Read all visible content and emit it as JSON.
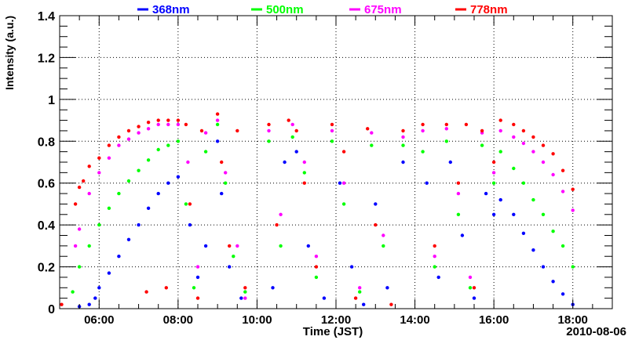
{
  "chart_data": {
    "type": "scatter",
    "title": "",
    "xlabel": "Time (JST)",
    "ylabel": "Intensity (a.u.)",
    "date_label": "2010-08-06",
    "xlim_hours": [
      5,
      19
    ],
    "ylim": [
      0,
      1.4
    ],
    "x_ticks": [
      {
        "t": 6,
        "label": "06:00"
      },
      {
        "t": 8,
        "label": "08:00"
      },
      {
        "t": 10,
        "label": "10:00"
      },
      {
        "t": 12,
        "label": "12:00"
      },
      {
        "t": 14,
        "label": "14:00"
      },
      {
        "t": 16,
        "label": "16:00"
      },
      {
        "t": 18,
        "label": "18:00"
      }
    ],
    "y_ticks": [
      {
        "v": 0,
        "label": "0"
      },
      {
        "v": 0.2,
        "label": "0.2"
      },
      {
        "v": 0.4,
        "label": "0.4"
      },
      {
        "v": 0.6,
        "label": "0.6"
      },
      {
        "v": 0.8,
        "label": "0.8"
      },
      {
        "v": 1,
        "label": "1"
      },
      {
        "v": 1.2,
        "label": "1.2"
      },
      {
        "v": 1.4,
        "label": "1.4"
      }
    ],
    "grid": true,
    "legend_position": "top",
    "series": [
      {
        "name": "368nm",
        "color": "#0000ff",
        "points": [
          [
            5.5,
            0.01
          ],
          [
            5.75,
            0.02
          ],
          [
            5.9,
            0.05
          ],
          [
            6,
            0.1
          ],
          [
            6.25,
            0.17
          ],
          [
            6.5,
            0.25
          ],
          [
            6.75,
            0.33
          ],
          [
            7,
            0.4
          ],
          [
            7.25,
            0.48
          ],
          [
            7.5,
            0.55
          ],
          [
            7.75,
            0.6
          ],
          [
            8,
            0.63
          ],
          [
            8.3,
            0.4
          ],
          [
            8.5,
            0.15
          ],
          [
            8.7,
            0.3
          ],
          [
            9.0,
            0.8
          ],
          [
            9.1,
            0.55
          ],
          [
            9.3,
            0.2
          ],
          [
            9.6,
            0.05
          ],
          [
            10.4,
            0.1
          ],
          [
            10.7,
            0.7
          ],
          [
            11.0,
            0.75
          ],
          [
            11.3,
            0.3
          ],
          [
            11.7,
            0.05
          ],
          [
            12.1,
            0.6
          ],
          [
            12.4,
            0.2
          ],
          [
            12.7,
            0.02
          ],
          [
            13.0,
            0.5
          ],
          [
            13.3,
            0.1
          ],
          [
            13.7,
            0.7
          ],
          [
            14.3,
            0.6
          ],
          [
            14.6,
            0.15
          ],
          [
            14.9,
            0.7
          ],
          [
            15.2,
            0.35
          ],
          [
            15.5,
            0.05
          ],
          [
            15.8,
            0.55
          ],
          [
            16.0,
            0.45
          ],
          [
            16.17,
            0.52
          ],
          [
            16.5,
            0.45
          ],
          [
            16.75,
            0.36
          ],
          [
            17,
            0.28
          ],
          [
            17.25,
            0.2
          ],
          [
            17.5,
            0.13
          ],
          [
            17.75,
            0.07
          ],
          [
            18,
            0.02
          ]
        ]
      },
      {
        "name": "500nm",
        "color": "#00ff00",
        "points": [
          [
            5.33,
            0.08
          ],
          [
            5.5,
            0.2
          ],
          [
            5.75,
            0.3
          ],
          [
            6,
            0.4
          ],
          [
            6.25,
            0.48
          ],
          [
            6.5,
            0.55
          ],
          [
            6.75,
            0.61
          ],
          [
            7,
            0.66
          ],
          [
            7.25,
            0.71
          ],
          [
            7.5,
            0.76
          ],
          [
            7.75,
            0.78
          ],
          [
            8,
            0.8
          ],
          [
            8.2,
            0.5
          ],
          [
            8.4,
            0.1
          ],
          [
            8.7,
            0.75
          ],
          [
            9.0,
            0.88
          ],
          [
            9.2,
            0.6
          ],
          [
            9.4,
            0.25
          ],
          [
            9.7,
            0.08
          ],
          [
            10.3,
            0.8
          ],
          [
            10.6,
            0.3
          ],
          [
            10.9,
            0.82
          ],
          [
            11.2,
            0.65
          ],
          [
            11.5,
            0.15
          ],
          [
            11.9,
            0.8
          ],
          [
            12.2,
            0.5
          ],
          [
            12.6,
            0.08
          ],
          [
            12.9,
            0.78
          ],
          [
            13.2,
            0.3
          ],
          [
            13.7,
            0.78
          ],
          [
            14.2,
            0.75
          ],
          [
            14.5,
            0.2
          ],
          [
            14.8,
            0.8
          ],
          [
            15.1,
            0.45
          ],
          [
            15.4,
            0.1
          ],
          [
            15.7,
            0.78
          ],
          [
            16.0,
            0.6
          ],
          [
            16.17,
            0.75
          ],
          [
            16.5,
            0.67
          ],
          [
            16.75,
            0.6
          ],
          [
            17,
            0.52
          ],
          [
            17.25,
            0.45
          ],
          [
            17.5,
            0.37
          ],
          [
            17.75,
            0.3
          ],
          [
            18,
            0.2
          ]
        ]
      },
      {
        "name": "675nm",
        "color": "#ff00ff",
        "points": [
          [
            5.4,
            0.3
          ],
          [
            5.5,
            0.38
          ],
          [
            5.75,
            0.55
          ],
          [
            6,
            0.65
          ],
          [
            6.25,
            0.72
          ],
          [
            6.5,
            0.78
          ],
          [
            6.75,
            0.81
          ],
          [
            7,
            0.84
          ],
          [
            7.25,
            0.86
          ],
          [
            7.5,
            0.88
          ],
          [
            7.75,
            0.88
          ],
          [
            8,
            0.88
          ],
          [
            8.25,
            0.7
          ],
          [
            8.5,
            0.2
          ],
          [
            8.7,
            0.84
          ],
          [
            9.0,
            0.9
          ],
          [
            9.2,
            0.65
          ],
          [
            9.5,
            0.3
          ],
          [
            9.7,
            0.05
          ],
          [
            10.3,
            0.85
          ],
          [
            10.6,
            0.45
          ],
          [
            10.9,
            0.88
          ],
          [
            11.2,
            0.7
          ],
          [
            11.5,
            0.25
          ],
          [
            11.9,
            0.85
          ],
          [
            12.2,
            0.6
          ],
          [
            12.6,
            0.1
          ],
          [
            12.9,
            0.84
          ],
          [
            13.2,
            0.35
          ],
          [
            13.7,
            0.82
          ],
          [
            14.2,
            0.85
          ],
          [
            14.5,
            0.25
          ],
          [
            14.8,
            0.86
          ],
          [
            15.1,
            0.55
          ],
          [
            15.4,
            0.15
          ],
          [
            15.7,
            0.84
          ],
          [
            16.0,
            0.65
          ],
          [
            16.17,
            0.85
          ],
          [
            16.5,
            0.82
          ],
          [
            16.75,
            0.79
          ],
          [
            17,
            0.75
          ],
          [
            17.25,
            0.7
          ],
          [
            17.5,
            0.64
          ],
          [
            17.75,
            0.56
          ],
          [
            18,
            0.47
          ]
        ]
      },
      {
        "name": "778nm",
        "color": "#ff0000",
        "points": [
          [
            5.05,
            0.02
          ],
          [
            5.4,
            0.5
          ],
          [
            5.5,
            0.58
          ],
          [
            5.6,
            0.61
          ],
          [
            5.75,
            0.68
          ],
          [
            6,
            0.72
          ],
          [
            6.25,
            0.78
          ],
          [
            6.5,
            0.82
          ],
          [
            6.75,
            0.85
          ],
          [
            7,
            0.87
          ],
          [
            7.25,
            0.89
          ],
          [
            7.5,
            0.9
          ],
          [
            7.75,
            0.9
          ],
          [
            8,
            0.9
          ],
          [
            7.2,
            0.08
          ],
          [
            7.7,
            0.1
          ],
          [
            8.2,
            0.88
          ],
          [
            8.3,
            0.5
          ],
          [
            8.5,
            0.05
          ],
          [
            8.6,
            0.85
          ],
          [
            9.0,
            0.93
          ],
          [
            9.1,
            0.7
          ],
          [
            9.3,
            0.3
          ],
          [
            9.5,
            0.85
          ],
          [
            9.7,
            0.1
          ],
          [
            10.3,
            0.88
          ],
          [
            10.5,
            0.4
          ],
          [
            10.8,
            0.9
          ],
          [
            11.0,
            0.85
          ],
          [
            11.2,
            0.6
          ],
          [
            11.5,
            0.2
          ],
          [
            11.9,
            0.88
          ],
          [
            12.2,
            0.75
          ],
          [
            12.5,
            0.05
          ],
          [
            12.8,
            0.86
          ],
          [
            13.0,
            0.4
          ],
          [
            13.4,
            0.02
          ],
          [
            13.7,
            0.85
          ],
          [
            14.2,
            0.88
          ],
          [
            14.5,
            0.3
          ],
          [
            14.8,
            0.88
          ],
          [
            15.1,
            0.6
          ],
          [
            15.3,
            0.88
          ],
          [
            15.5,
            0.1
          ],
          [
            15.7,
            0.85
          ],
          [
            16.0,
            0.7
          ],
          [
            16.17,
            0.9
          ],
          [
            16.5,
            0.88
          ],
          [
            16.75,
            0.85
          ],
          [
            17,
            0.82
          ],
          [
            17.25,
            0.78
          ],
          [
            17.5,
            0.74
          ],
          [
            17.75,
            0.66
          ],
          [
            18,
            0.57
          ]
        ]
      }
    ]
  }
}
